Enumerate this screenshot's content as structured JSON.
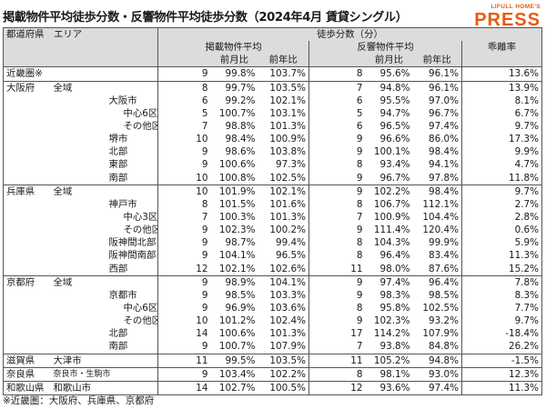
{
  "title": "掲載物件平均徒歩分数・反響物件平均徒歩分数（2024年4月 賃貸シングル）",
  "logo": {
    "top": "LIFULL HOME'S",
    "main": "PRESS",
    "color": "#e95a0c"
  },
  "header": {
    "region": "都道府県　エリア",
    "walk": "徒歩分数（分）",
    "listed": "掲載物件平均",
    "response": "反響物件平均",
    "divergence": "乖離率",
    "mom": "前月比",
    "yoy": "前年比"
  },
  "rows": [
    [
      "近畿圏※",
      "",
      "9",
      "99.8%",
      "103.7%",
      "8",
      "95.6%",
      "96.1%",
      "13.6%"
    ],
    [
      "大阪府",
      "全域",
      "8",
      "99.7%",
      "103.5%",
      "7",
      "94.8%",
      "96.1%",
      "13.9%"
    ],
    [
      "",
      "大阪市",
      "6",
      "99.2%",
      "102.1%",
      "6",
      "95.5%",
      "97.0%",
      "8.1%"
    ],
    [
      "",
      "中心6区",
      "5",
      "100.7%",
      "103.1%",
      "5",
      "94.7%",
      "96.7%",
      "6.7%"
    ],
    [
      "",
      "その他区",
      "7",
      "98.8%",
      "101.3%",
      "6",
      "96.5%",
      "97.4%",
      "9.7%"
    ],
    [
      "",
      "堺市",
      "10",
      "98.4%",
      "100.9%",
      "9",
      "96.6%",
      "86.0%",
      "17.3%"
    ],
    [
      "",
      "北部",
      "9",
      "98.6%",
      "103.8%",
      "9",
      "100.1%",
      "98.4%",
      "9.9%"
    ],
    [
      "",
      "東部",
      "9",
      "100.6%",
      "97.3%",
      "8",
      "93.4%",
      "94.1%",
      "4.7%"
    ],
    [
      "",
      "南部",
      "10",
      "100.8%",
      "102.5%",
      "9",
      "96.7%",
      "97.8%",
      "11.8%"
    ],
    [
      "兵庫県",
      "全域",
      "10",
      "101.9%",
      "102.1%",
      "9",
      "102.2%",
      "98.4%",
      "9.7%"
    ],
    [
      "",
      "神戸市",
      "8",
      "101.5%",
      "101.6%",
      "8",
      "106.7%",
      "112.1%",
      "2.7%"
    ],
    [
      "",
      "中心3区",
      "7",
      "100.3%",
      "101.3%",
      "7",
      "100.9%",
      "104.4%",
      "2.8%"
    ],
    [
      "",
      "その他区",
      "9",
      "102.3%",
      "100.2%",
      "9",
      "111.4%",
      "120.4%",
      "0.6%"
    ],
    [
      "",
      "阪神間北部",
      "9",
      "98.7%",
      "99.4%",
      "8",
      "104.3%",
      "99.9%",
      "5.9%"
    ],
    [
      "",
      "阪神間南部",
      "9",
      "104.1%",
      "96.5%",
      "8",
      "96.4%",
      "83.4%",
      "11.3%"
    ],
    [
      "",
      "西部",
      "12",
      "102.1%",
      "102.6%",
      "11",
      "98.0%",
      "87.6%",
      "15.2%"
    ],
    [
      "京都府",
      "全域",
      "9",
      "98.9%",
      "104.1%",
      "9",
      "97.4%",
      "96.4%",
      "7.8%"
    ],
    [
      "",
      "京都市",
      "9",
      "98.5%",
      "103.3%",
      "9",
      "98.3%",
      "98.5%",
      "8.3%"
    ],
    [
      "",
      "中心6区",
      "9",
      "96.9%",
      "103.6%",
      "8",
      "95.8%",
      "102.5%",
      "7.7%"
    ],
    [
      "",
      "その他区",
      "10",
      "101.2%",
      "102.4%",
      "9",
      "102.3%",
      "93.2%",
      "9.7%"
    ],
    [
      "",
      "北部",
      "14",
      "100.6%",
      "101.3%",
      "17",
      "114.2%",
      "107.9%",
      "-18.4%"
    ],
    [
      "",
      "南部",
      "9",
      "100.7%",
      "107.9%",
      "7",
      "93.8%",
      "84.8%",
      "26.2%"
    ],
    [
      "滋賀県",
      "大津市",
      "11",
      "99.5%",
      "103.5%",
      "11",
      "105.2%",
      "94.8%",
      "-1.5%"
    ],
    [
      "奈良県",
      "奈良市・生駒市",
      "9",
      "103.4%",
      "102.2%",
      "8",
      "98.1%",
      "93.0%",
      "12.3%"
    ],
    [
      "和歌山県",
      "和歌山市",
      "14",
      "102.7%",
      "100.5%",
      "12",
      "93.6%",
      "97.4%",
      "11.3%"
    ]
  ],
  "footnote": "※近畿圏：大阪府、兵庫県、京都府"
}
